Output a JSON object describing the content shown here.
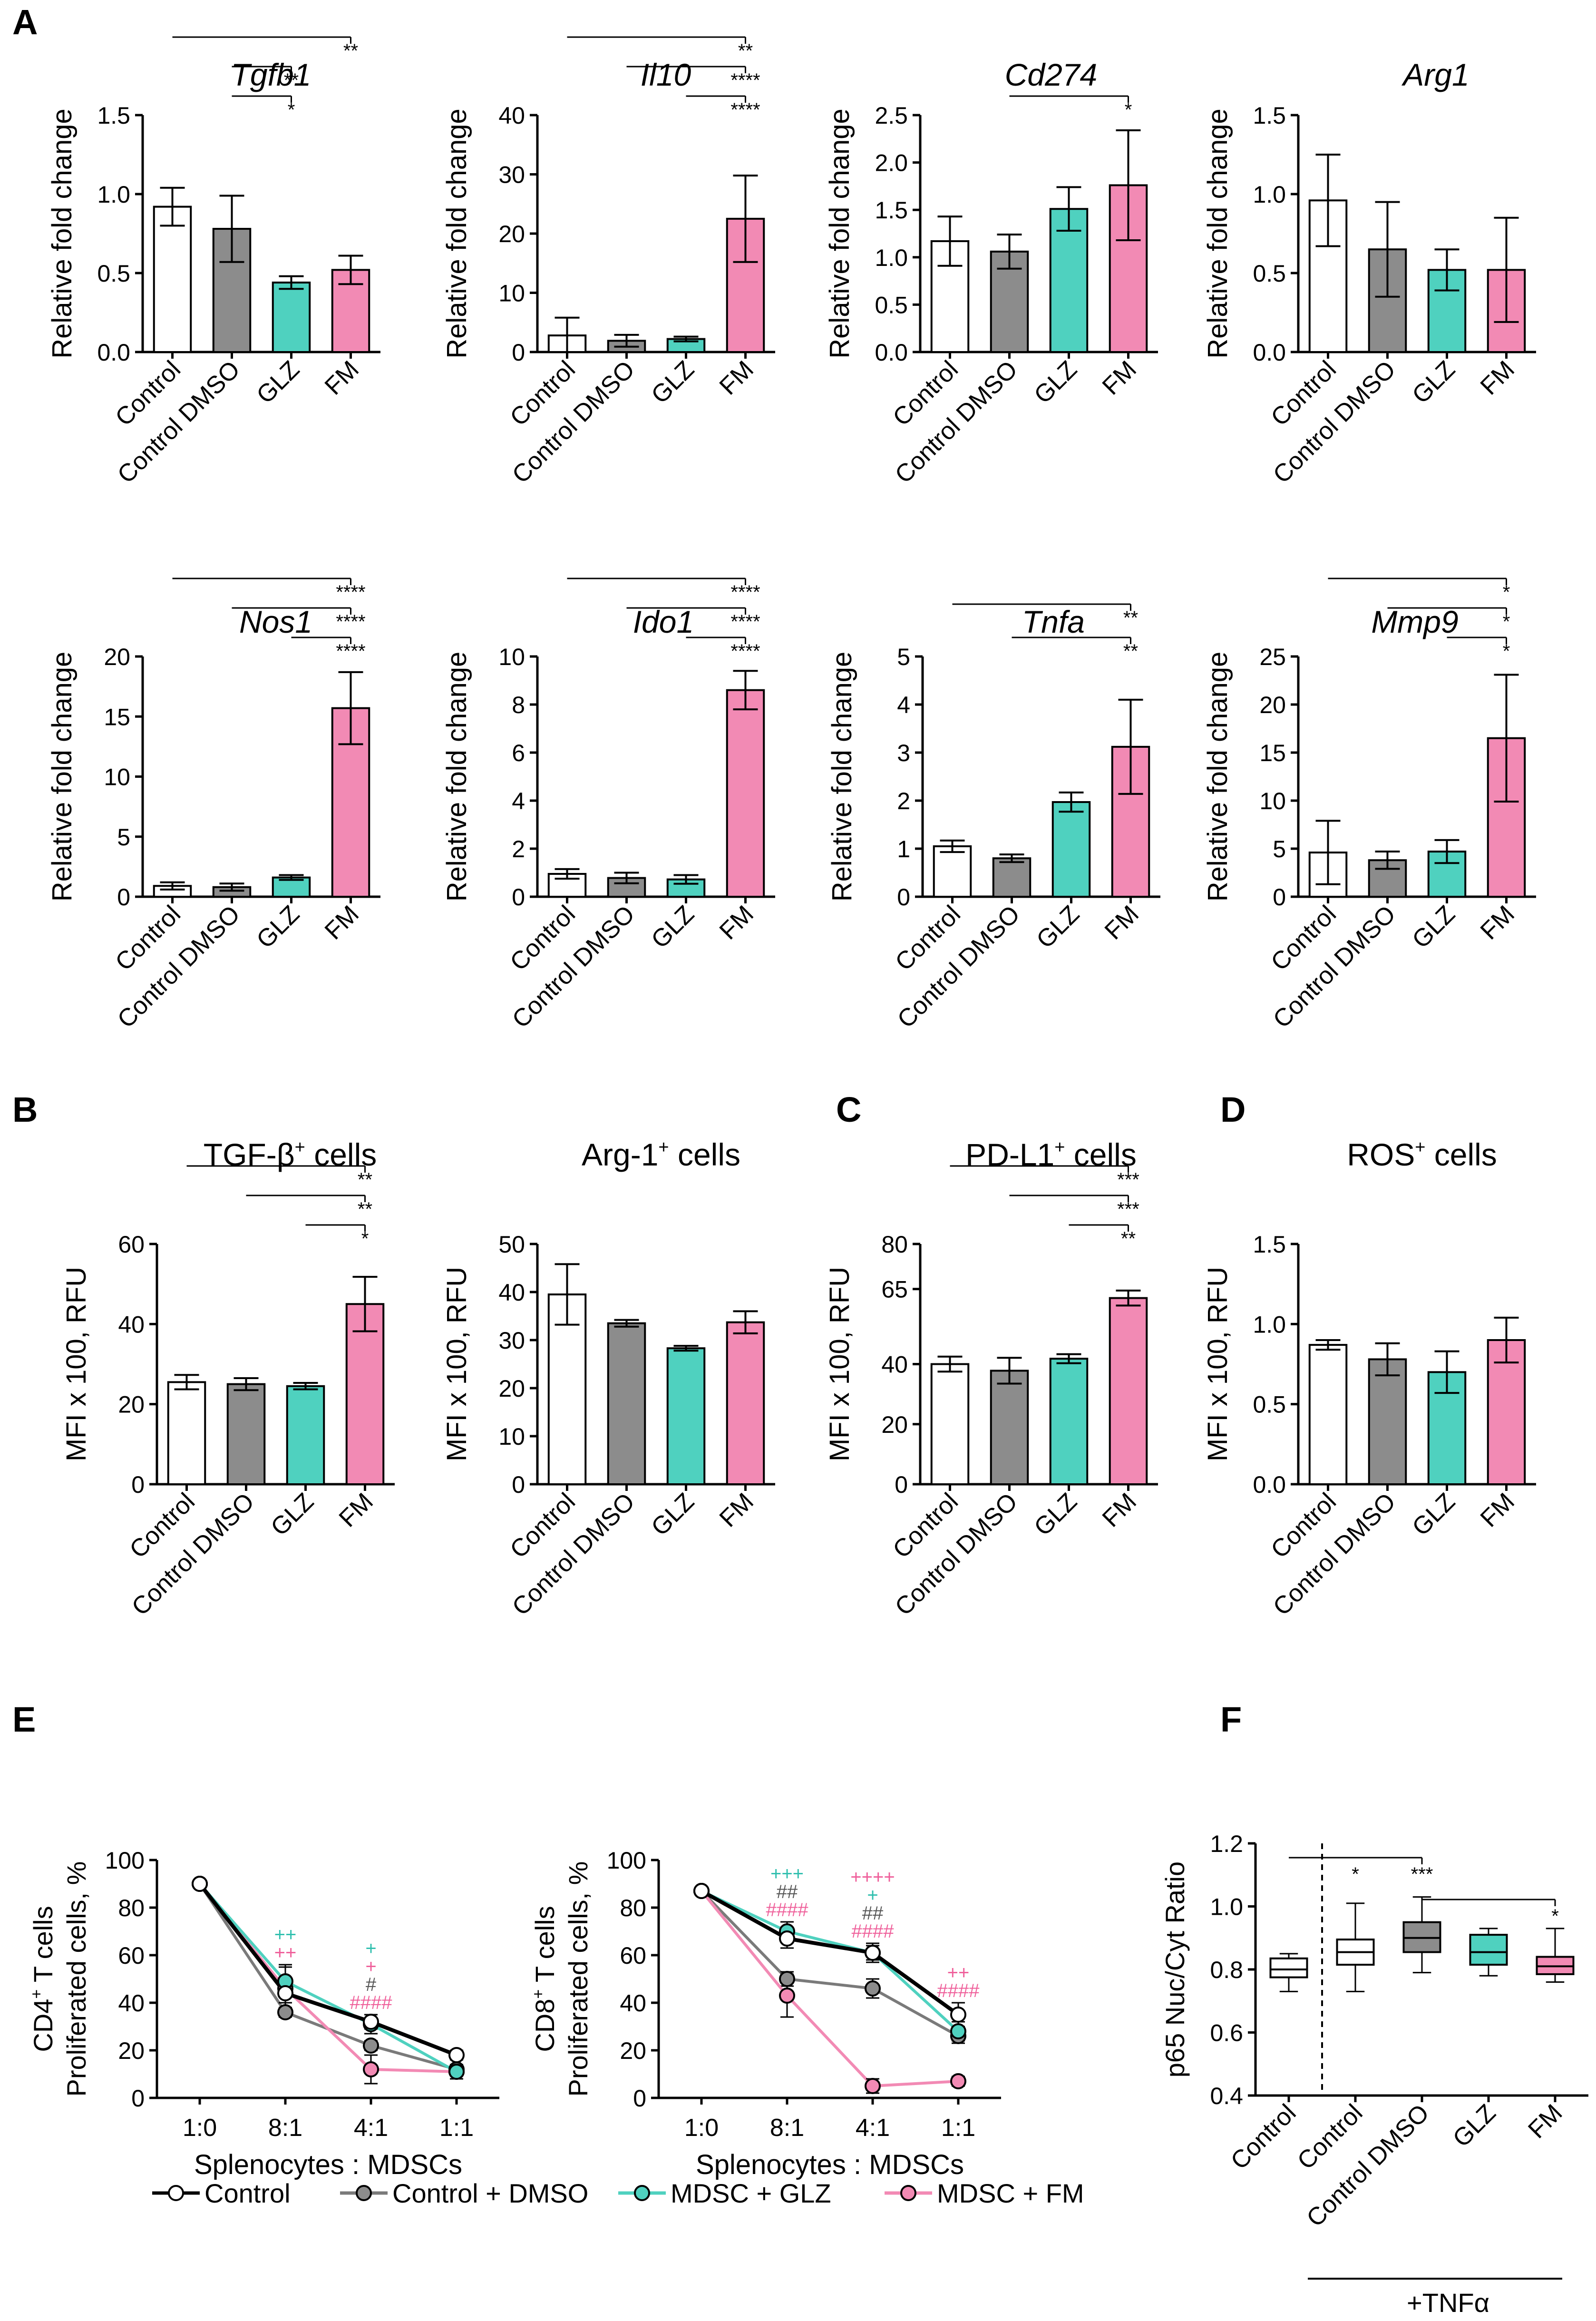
{
  "colors": {
    "control": "#ffffff",
    "dmso": "#8c8c8c",
    "glz": "#4fd1bf",
    "fm": "#f28ab4",
    "axis": "#000000"
  },
  "panel_letters": [
    "A",
    "B",
    "C",
    "D",
    "E",
    "F"
  ],
  "chart_data": [
    {
      "type": "bar",
      "id": "tgfb1",
      "panel": "A",
      "title": "Tgfb1",
      "italic": true,
      "ylabel": "Relative fold change",
      "categories": [
        "Control",
        "Control DMSO",
        "GLZ",
        "FM"
      ],
      "values": [
        0.92,
        0.78,
        0.44,
        0.52
      ],
      "errors": [
        0.12,
        0.21,
        0.04,
        0.09
      ],
      "ylim": [
        0,
        1.5
      ],
      "ticks": [
        0.0,
        0.5,
        1.0,
        1.5
      ],
      "tick_labels": [
        "0.0",
        "0.5",
        "1.0",
        "1.5"
      ],
      "brackets": [
        {
          "from": 0,
          "to": 3,
          "level": 0,
          "label": "**"
        },
        {
          "from": 1,
          "to": 2,
          "level": 1,
          "label": "**"
        },
        {
          "from": 1,
          "to": 2,
          "level": 2,
          "label": "*"
        }
      ]
    },
    {
      "type": "bar",
      "id": "il10",
      "panel": "A",
      "title": "Il10",
      "italic": true,
      "ylabel": "Relative fold change",
      "categories": [
        "Control",
        "Control DMSO",
        "GLZ",
        "FM"
      ],
      "values": [
        2.8,
        1.9,
        2.2,
        22.5
      ],
      "errors": [
        3.0,
        1.0,
        0.4,
        7.3
      ],
      "ylim": [
        0,
        40
      ],
      "ticks": [
        0,
        10,
        20,
        30,
        40
      ],
      "tick_labels": [
        "0",
        "10",
        "20",
        "30",
        "40"
      ],
      "brackets": [
        {
          "from": 0,
          "to": 3,
          "level": 0,
          "label": "**"
        },
        {
          "from": 1,
          "to": 3,
          "level": 1,
          "label": "****"
        },
        {
          "from": 2,
          "to": 3,
          "level": 2,
          "label": "****"
        }
      ]
    },
    {
      "type": "bar",
      "id": "cd274",
      "panel": "A",
      "title": "Cd274",
      "italic": true,
      "ylabel": "Relative fold change",
      "categories": [
        "Control",
        "Control DMSO",
        "GLZ",
        "FM"
      ],
      "values": [
        1.17,
        1.06,
        1.51,
        1.76
      ],
      "errors": [
        0.26,
        0.18,
        0.23,
        0.58
      ],
      "ylim": [
        0,
        2.5
      ],
      "ticks": [
        0.0,
        0.5,
        1.0,
        1.5,
        2.0,
        2.5
      ],
      "tick_labels": [
        "0.0",
        "0.5",
        "1.0",
        "1.5",
        "2.0",
        "2.5"
      ],
      "brackets": [
        {
          "from": 1,
          "to": 3,
          "level": 0,
          "label": "*"
        }
      ]
    },
    {
      "type": "bar",
      "id": "arg1",
      "panel": "A",
      "title": "Arg1",
      "italic": true,
      "ylabel": "Relative fold change",
      "categories": [
        "Control",
        "Control DMSO",
        "GLZ",
        "FM"
      ],
      "values": [
        0.96,
        0.65,
        0.52,
        0.52
      ],
      "errors": [
        0.29,
        0.3,
        0.13,
        0.33
      ],
      "ylim": [
        0,
        1.5
      ],
      "ticks": [
        0.0,
        0.5,
        1.0,
        1.5
      ],
      "tick_labels": [
        "0.0",
        "0.5",
        "1.0",
        "1.5"
      ],
      "brackets": []
    },
    {
      "type": "bar",
      "id": "nos1",
      "panel": "A",
      "title": "Nos1",
      "italic": true,
      "ylabel": "Relative fold change",
      "categories": [
        "Control",
        "Control DMSO",
        "GLZ",
        "FM"
      ],
      "values": [
        0.9,
        0.8,
        1.6,
        15.7
      ],
      "errors": [
        0.3,
        0.3,
        0.2,
        3.0
      ],
      "ylim": [
        0,
        20
      ],
      "ticks": [
        0,
        5,
        10,
        15,
        20
      ],
      "tick_labels": [
        "0",
        "5",
        "10",
        "15",
        "20"
      ],
      "brackets": [
        {
          "from": 0,
          "to": 3,
          "level": 0,
          "label": "****"
        },
        {
          "from": 1,
          "to": 3,
          "level": 1,
          "label": "****"
        },
        {
          "from": 2,
          "to": 3,
          "level": 2,
          "label": "****"
        }
      ]
    },
    {
      "type": "bar",
      "id": "ido1",
      "panel": "A",
      "title": "Ido1",
      "italic": true,
      "ylabel": "Relative fold change",
      "categories": [
        "Control",
        "Control DMSO",
        "GLZ",
        "FM"
      ],
      "values": [
        0.95,
        0.78,
        0.72,
        8.6
      ],
      "errors": [
        0.2,
        0.22,
        0.18,
        0.8
      ],
      "ylim": [
        0,
        10
      ],
      "ticks": [
        0,
        2,
        4,
        6,
        8,
        10
      ],
      "tick_labels": [
        "0",
        "2",
        "4",
        "6",
        "8",
        "10"
      ],
      "brackets": [
        {
          "from": 0,
          "to": 3,
          "level": 0,
          "label": "****"
        },
        {
          "from": 1,
          "to": 3,
          "level": 1,
          "label": "****"
        },
        {
          "from": 2,
          "to": 3,
          "level": 2,
          "label": "****"
        }
      ]
    },
    {
      "type": "bar",
      "id": "tnfa",
      "panel": "A",
      "title": "Tnfa",
      "italic": true,
      "ylabel": "Relative fold change",
      "categories": [
        "Control",
        "Control DMSO",
        "GLZ",
        "FM"
      ],
      "values": [
        1.05,
        0.8,
        1.97,
        3.12
      ],
      "errors": [
        0.12,
        0.08,
        0.2,
        0.98
      ],
      "ylim": [
        0,
        5
      ],
      "ticks": [
        0,
        1,
        2,
        3,
        4,
        5
      ],
      "tick_labels": [
        "0",
        "1",
        "2",
        "3",
        "4",
        "5"
      ],
      "brackets": [
        {
          "from": 0,
          "to": 3,
          "level": 0,
          "label": "**"
        },
        {
          "from": 1,
          "to": 3,
          "level": 1,
          "label": "**"
        }
      ]
    },
    {
      "type": "bar",
      "id": "mmp9",
      "panel": "A",
      "title": "Mmp9",
      "italic": true,
      "ylabel": "Relative fold change",
      "categories": [
        "Control",
        "Control DMSO",
        "GLZ",
        "FM"
      ],
      "values": [
        4.6,
        3.8,
        4.7,
        16.5
      ],
      "errors": [
        3.3,
        0.9,
        1.2,
        6.6
      ],
      "ylim": [
        0,
        25
      ],
      "ticks": [
        0,
        5,
        10,
        15,
        20,
        25
      ],
      "tick_labels": [
        "0",
        "5",
        "10",
        "15",
        "20",
        "25"
      ],
      "brackets": [
        {
          "from": 0,
          "to": 3,
          "level": 0,
          "label": "*"
        },
        {
          "from": 1,
          "to": 3,
          "level": 1,
          "label": "*"
        },
        {
          "from": 2,
          "to": 3,
          "level": 2,
          "label": "*"
        }
      ]
    },
    {
      "type": "bar",
      "id": "tgfb-cells",
      "panel": "B",
      "title": "TGF-β",
      "title_sup": "+",
      "title_suffix": " cells",
      "italic": false,
      "ylabel": "MFI x 100, RFU",
      "categories": [
        "Control",
        "Control DMSO",
        "GLZ",
        "FM"
      ],
      "values": [
        25.5,
        25.0,
        24.5,
        45.0
      ],
      "errors": [
        1.8,
        1.5,
        0.8,
        6.8
      ],
      "ylim": [
        0,
        60
      ],
      "ticks": [
        0,
        20,
        40,
        60
      ],
      "tick_labels": [
        "0",
        "20",
        "40",
        "60"
      ],
      "brackets": [
        {
          "from": 0,
          "to": 3,
          "level": 0,
          "label": "**"
        },
        {
          "from": 1,
          "to": 3,
          "level": 1,
          "label": "**"
        },
        {
          "from": 2,
          "to": 3,
          "level": 2,
          "label": "*"
        }
      ]
    },
    {
      "type": "bar",
      "id": "arg1-cells",
      "panel": "B",
      "title": "Arg-1",
      "title_sup": "+",
      "title_suffix": " cells",
      "italic": false,
      "ylabel": "MFI x 100, RFU",
      "categories": [
        "Control",
        "Control DMSO",
        "GLZ",
        "FM"
      ],
      "values": [
        39.5,
        33.5,
        28.3,
        33.7
      ],
      "errors": [
        6.3,
        0.7,
        0.5,
        2.3
      ],
      "ylim": [
        0,
        50
      ],
      "ticks": [
        0,
        10,
        20,
        30,
        40,
        50
      ],
      "tick_labels": [
        "0",
        "10",
        "20",
        "30",
        "40",
        "50"
      ],
      "brackets": []
    },
    {
      "type": "bar",
      "id": "pdl1-cells",
      "panel": "C",
      "title": "PD-L1",
      "title_sup": "+",
      "title_suffix": " cells",
      "italic": false,
      "ylabel": "MFI x 100, RFU",
      "categories": [
        "Control",
        "Control DMSO",
        "GLZ",
        "FM"
      ],
      "values": [
        40.0,
        37.8,
        41.8,
        62.0
      ],
      "errors": [
        2.5,
        4.3,
        1.5,
        2.5
      ],
      "ylim": [
        0,
        80
      ],
      "ticks": [
        0,
        20,
        40,
        65,
        80
      ],
      "tick_labels": [
        "0",
        "20",
        "40",
        "65",
        "80"
      ],
      "brackets": [
        {
          "from": 0,
          "to": 3,
          "level": 0,
          "label": "***"
        },
        {
          "from": 1,
          "to": 3,
          "level": 1,
          "label": "***"
        },
        {
          "from": 2,
          "to": 3,
          "level": 2,
          "label": "**"
        }
      ]
    },
    {
      "type": "bar",
      "id": "ros-cells",
      "panel": "D",
      "title": "ROS",
      "title_sup": "+",
      "title_suffix": " cells",
      "italic": false,
      "ylabel": "MFI x 100, RFU",
      "categories": [
        "Control",
        "Control DMSO",
        "GLZ",
        "FM"
      ],
      "values": [
        0.87,
        0.78,
        0.7,
        0.9
      ],
      "errors": [
        0.03,
        0.1,
        0.13,
        0.14
      ],
      "ylim": [
        0,
        1.5
      ],
      "ticks": [
        0.0,
        0.5,
        1.0,
        1.5
      ],
      "tick_labels": [
        "0.0",
        "0.5",
        "1.0",
        "1.5"
      ],
      "brackets": []
    },
    {
      "type": "line",
      "id": "cd4",
      "panel": "E",
      "ylabel_lines": [
        "CD4",
        "T cells",
        "Proliferated cells, %"
      ],
      "ylabel_sup": "+",
      "xlabel": "Splenocytes : MDSCs",
      "x": [
        "1:0",
        "8:1",
        "4:1",
        "1:1"
      ],
      "ylim": [
        0,
        100
      ],
      "ticks": [
        0,
        20,
        40,
        60,
        80,
        100
      ],
      "tick_labels": [
        "0",
        "20",
        "40",
        "60",
        "80",
        "100"
      ],
      "series": [
        {
          "name": "Control",
          "values": [
            90,
            44,
            32,
            18
          ],
          "errors": [
            1,
            4,
            3,
            2
          ]
        },
        {
          "name": "Control + DMSO",
          "values": [
            90,
            36,
            22,
            12
          ],
          "errors": [
            1,
            2,
            2,
            2
          ]
        },
        {
          "name": "MDSC + GLZ",
          "values": [
            90,
            49,
            31,
            11
          ],
          "errors": [
            1,
            6,
            4,
            3
          ]
        },
        {
          "name": "MDSC + FM",
          "values": [
            90,
            46,
            12,
            11
          ],
          "errors": [
            1,
            10,
            6,
            3
          ]
        }
      ],
      "annotations": [
        {
          "x": 1,
          "lines": [
            {
              "text": "++",
              "series": 2
            },
            {
              "text": "++",
              "series": 3
            }
          ]
        },
        {
          "x": 2,
          "lines": [
            {
              "text": "+",
              "series": 2
            },
            {
              "text": "+",
              "series": 3
            },
            {
              "text": "#",
              "series": 1
            },
            {
              "text": "####",
              "series": 3
            }
          ]
        }
      ]
    },
    {
      "type": "line",
      "id": "cd8",
      "panel": "E",
      "ylabel_lines": [
        "CD8",
        "T cells",
        "Proliferated cells, %"
      ],
      "ylabel_sup": "+",
      "xlabel": "Splenocytes : MDSCs",
      "x": [
        "1:0",
        "8:1",
        "4:1",
        "1:1"
      ],
      "ylim": [
        0,
        100
      ],
      "ticks": [
        0,
        20,
        40,
        60,
        80,
        100
      ],
      "tick_labels": [
        "0",
        "20",
        "40",
        "60",
        "80",
        "100"
      ],
      "series": [
        {
          "name": "Control",
          "values": [
            87,
            67,
            61,
            35
          ],
          "errors": [
            1,
            4,
            3,
            5
          ]
        },
        {
          "name": "Control + DMSO",
          "values": [
            87,
            50,
            46,
            26
          ],
          "errors": [
            1,
            3,
            4,
            3
          ]
        },
        {
          "name": "MDSC + GLZ",
          "values": [
            87,
            70,
            61,
            28
          ],
          "errors": [
            1,
            4,
            4,
            4
          ]
        },
        {
          "name": "MDSC + FM",
          "values": [
            87,
            43,
            5,
            7
          ],
          "errors": [
            1,
            9,
            3,
            2
          ]
        }
      ],
      "annotations": [
        {
          "x": 1,
          "lines": [
            {
              "text": "+++",
              "series": 2
            },
            {
              "text": "##",
              "series": 1
            },
            {
              "text": "####",
              "series": 3
            }
          ]
        },
        {
          "x": 2,
          "lines": [
            {
              "text": "++++",
              "series": 3
            },
            {
              "text": "+",
              "series": 2
            },
            {
              "text": "##",
              "series": 1
            },
            {
              "text": "####",
              "series": 3
            }
          ]
        },
        {
          "x": 3,
          "lines": [
            {
              "text": "++",
              "series": 3
            },
            {
              "text": "####",
              "series": 3
            }
          ]
        }
      ]
    },
    {
      "type": "boxplot",
      "id": "p65",
      "panel": "F",
      "ylabel": "p65 Nuc/Cyt Ratio",
      "categories": [
        "Control",
        "Control",
        "Control DMSO",
        "GLZ",
        "FM"
      ],
      "group_label": "+TNFα",
      "ylim": [
        0.4,
        1.2
      ],
      "ticks": [
        0.4,
        0.6,
        0.8,
        1.0,
        1.2
      ],
      "tick_labels": [
        "0.4",
        "0.6",
        "0.8",
        "1.0",
        "1.2"
      ],
      "boxes": [
        {
          "min": 0.73,
          "q1": 0.775,
          "median": 0.8,
          "q3": 0.835,
          "max": 0.85
        },
        {
          "min": 0.73,
          "q1": 0.815,
          "median": 0.855,
          "q3": 0.895,
          "max": 1.01
        },
        {
          "min": 0.79,
          "q1": 0.855,
          "median": 0.9,
          "q3": 0.95,
          "max": 1.03
        },
        {
          "min": 0.78,
          "q1": 0.815,
          "median": 0.855,
          "q3": 0.91,
          "max": 0.93
        },
        {
          "min": 0.76,
          "q1": 0.785,
          "median": 0.81,
          "q3": 0.84,
          "max": 0.93
        }
      ],
      "brackets": [
        {
          "from": 0,
          "to": 2,
          "level": 0,
          "labels": [
            {
              "at": 1,
              "text": "*"
            },
            {
              "at": 2,
              "text": "***"
            }
          ]
        },
        {
          "from": 2,
          "to": 4,
          "level": 1,
          "labels": [
            {
              "at": 4,
              "text": "*"
            }
          ]
        }
      ]
    }
  ],
  "legend": [
    {
      "label": "Control",
      "color": "#ffffff"
    },
    {
      "label": "Control + DMSO",
      "color": "#8c8c8c"
    },
    {
      "label": "MDSC + GLZ",
      "color": "#4fd1bf"
    },
    {
      "label": "MDSC + FM",
      "color": "#f28ab4"
    }
  ]
}
